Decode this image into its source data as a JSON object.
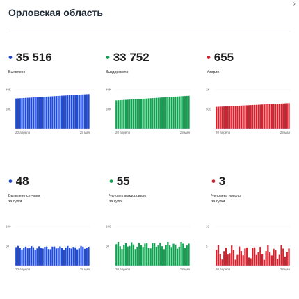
{
  "page": {
    "title": "Орловская область",
    "corner_icon": "chevron-icon"
  },
  "colors": {
    "blue": "#1f4bd8",
    "green": "#12a150",
    "red": "#d2222d"
  },
  "stats": [
    {
      "id": "confirmed",
      "value": "35 516",
      "label": "Выявлено",
      "color": "#1f4bd8"
    },
    {
      "id": "recovered",
      "value": "33 752",
      "label": "Выздоровело",
      "color": "#12a150"
    },
    {
      "id": "deaths",
      "value": "655",
      "label": "Умерло",
      "color": "#d2222d"
    },
    {
      "id": "confirmed-daily",
      "value": "48",
      "label": "Выявлено случаев\nза сутки",
      "color": "#1f4bd8"
    },
    {
      "id": "recovered-daily",
      "value": "55",
      "label": "Человек выздоровело\nза сутки",
      "color": "#12a150"
    },
    {
      "id": "deaths-daily",
      "value": "3",
      "label": "Человека умерло\nза сутки",
      "color": "#d2222d"
    }
  ],
  "chart_data": [
    {
      "type": "bar",
      "id": "confirmed-chart",
      "color": "#1f4bd8",
      "y_ticks": [
        "40К",
        "20К"
      ],
      "x_start": "20 апреля",
      "x_end": "28 мая",
      "ylim": [
        0,
        40000
      ],
      "values_range": [
        31000,
        35516
      ]
    },
    {
      "type": "bar",
      "id": "recovered-chart",
      "color": "#12a150",
      "y_ticks": [
        "40К",
        "20К"
      ],
      "x_start": "20 апреля",
      "x_end": "28 мая",
      "ylim": [
        0,
        40000
      ],
      "values_range": [
        29000,
        33752
      ]
    },
    {
      "type": "bar",
      "id": "deaths-chart",
      "color": "#d2222d",
      "y_ticks": [
        "1К",
        "500"
      ],
      "x_start": "20 апреля",
      "x_end": "28 мая",
      "ylim": [
        0,
        1000
      ],
      "values_range": [
        560,
        655
      ]
    },
    {
      "type": "bar",
      "id": "confirmed-daily-chart",
      "color": "#1f4bd8",
      "y_ticks": [
        "100",
        "50"
      ],
      "x_start": "20 апреля",
      "x_end": "28 мая",
      "ylim": [
        0,
        100
      ],
      "values_range": [
        40,
        52
      ]
    },
    {
      "type": "bar",
      "id": "recovered-daily-chart",
      "color": "#12a150",
      "y_ticks": [
        "100",
        "50"
      ],
      "x_start": "20 апреля",
      "x_end": "28 мая",
      "ylim": [
        0,
        100
      ],
      "values_range": [
        40,
        64
      ]
    },
    {
      "type": "bar",
      "id": "deaths-daily-chart",
      "color": "#d2222d",
      "y_ticks": [
        "10",
        "5"
      ],
      "x_start": "20 апреля",
      "x_end": "28 мая",
      "ylim": [
        0,
        10
      ],
      "values_range": [
        1,
        6
      ]
    }
  ]
}
